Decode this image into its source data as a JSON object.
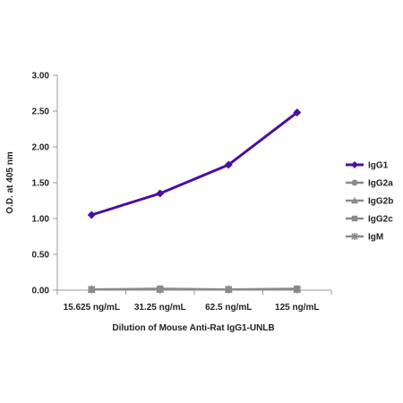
{
  "chart_data": {
    "type": "line",
    "categories": [
      "15.625 ng/mL",
      "31.25 ng/mL",
      "62.5 ng/mL",
      "125 ng/mL"
    ],
    "series": [
      {
        "name": "IgG1",
        "values": [
          1.05,
          1.35,
          1.75,
          2.48
        ],
        "color": "#4b0f9e",
        "marker": "diamond"
      },
      {
        "name": "IgG2a",
        "values": [
          0.01,
          0.01,
          0.01,
          0.01
        ],
        "color": "#8a8a8a",
        "marker": "circle"
      },
      {
        "name": "IgG2b",
        "values": [
          0.01,
          0.01,
          0.01,
          0.01
        ],
        "color": "#8a8a8a",
        "marker": "triangle"
      },
      {
        "name": "IgG2c",
        "values": [
          0.01,
          0.02,
          0.01,
          0.02
        ],
        "color": "#8a8a8a",
        "marker": "square"
      },
      {
        "name": "IgM",
        "values": [
          0.01,
          0.01,
          0.01,
          0.01
        ],
        "color": "#8a8a8a",
        "marker": "star"
      }
    ],
    "ylabel": "O.D. at 405 nm",
    "xlabel": "Dilution of Mouse Anti-Rat IgG1-UNLB",
    "ylim": [
      0,
      3.0
    ],
    "yticks": [
      "0.00",
      "0.50",
      "1.00",
      "1.50",
      "2.00",
      "2.50",
      "3.00"
    ],
    "grid": false,
    "legend_position": "right"
  }
}
